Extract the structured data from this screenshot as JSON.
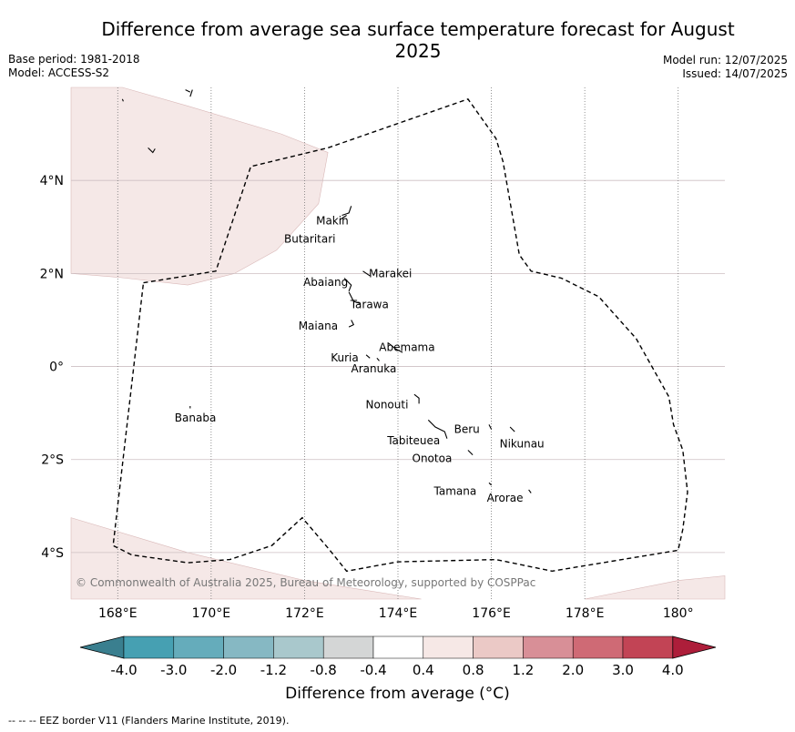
{
  "title": "Difference from average sea surface temperature forecast for August 2025",
  "meta_left": {
    "base_period": "Base period: 1981-2018",
    "model": "Model: ACCESS-S2"
  },
  "meta_right": {
    "model_run": "Model run: 12/07/2025",
    "issued": "Issued: 14/07/2025"
  },
  "copyright": "© Commonwealth of Australia 2025, Bureau of Meteorology, supported by COSPPac",
  "axes": {
    "lon_range": [
      167.0,
      181.0
    ],
    "lat_range": [
      -5.0,
      6.0
    ],
    "lon_ticks": [
      {
        "value": 168,
        "label": "168°E"
      },
      {
        "value": 170,
        "label": "170°E"
      },
      {
        "value": 172,
        "label": "172°E"
      },
      {
        "value": 174,
        "label": "174°E"
      },
      {
        "value": 176,
        "label": "176°E"
      },
      {
        "value": 178,
        "label": "178°E"
      },
      {
        "value": 180,
        "label": "180°"
      }
    ],
    "lat_ticks": [
      {
        "value": 4,
        "label": "4°N"
      },
      {
        "value": 2,
        "label": "2°N"
      },
      {
        "value": 0,
        "label": "0°"
      },
      {
        "value": -2,
        "label": "2°S"
      },
      {
        "value": -4,
        "label": "4°S"
      }
    ]
  },
  "islands": [
    {
      "name": "Makin",
      "lon": 172.95,
      "lat": 3.15
    },
    {
      "name": "Butaritari",
      "lon": 172.85,
      "lat": 3.05
    },
    {
      "name": "Marakei",
      "lon": 173.3,
      "lat": 2.0
    },
    {
      "name": "Abaiang",
      "lon": 172.95,
      "lat": 1.85
    },
    {
      "name": "Tarawa",
      "lon": 173.0,
      "lat": 1.45
    },
    {
      "name": "Maiana",
      "lon": 173.0,
      "lat": 0.95
    },
    {
      "name": "Abemama",
      "lon": 173.85,
      "lat": 0.45
    },
    {
      "name": "Kuria",
      "lon": 173.4,
      "lat": 0.25
    },
    {
      "name": "Aranuka",
      "lon": 173.6,
      "lat": 0.15
    },
    {
      "name": "Nonouti",
      "lon": 174.4,
      "lat": -0.7
    },
    {
      "name": "Banaba",
      "lon": 169.55,
      "lat": -0.85
    },
    {
      "name": "Tabiteuea",
      "lon": 174.9,
      "lat": -1.4
    },
    {
      "name": "Beru",
      "lon": 176.0,
      "lat": -1.35
    },
    {
      "name": "Nikunau",
      "lon": 176.45,
      "lat": -1.35
    },
    {
      "name": "Onotoa",
      "lon": 175.55,
      "lat": -1.8
    },
    {
      "name": "Tamana",
      "lon": 175.98,
      "lat": -2.5
    },
    {
      "name": "Arorae",
      "lon": 176.82,
      "lat": -2.65
    }
  ],
  "colorbar": {
    "colors": [
      "#3a7f8f",
      "#46a0b2",
      "#65acbb",
      "#86b8c3",
      "#a9c8cc",
      "#d4d6d6",
      "#ffffff",
      "#f6e8e6",
      "#ebc9c6",
      "#d88f97",
      "#cf6a75",
      "#c24455",
      "#ad1e3a"
    ],
    "tick_labels": [
      "-4.0",
      "-3.0",
      "-2.0",
      "-1.2",
      "-0.8",
      "-0.4",
      "0.4",
      "0.8",
      "1.2",
      "2.0",
      "3.0",
      "4.0"
    ],
    "label": "Difference from average (°C)"
  },
  "anomaly_fill_color": "#f5e8e7",
  "footnote": "--  --  -- EEZ border V11 (Flanders Marine Institute, 2019)."
}
